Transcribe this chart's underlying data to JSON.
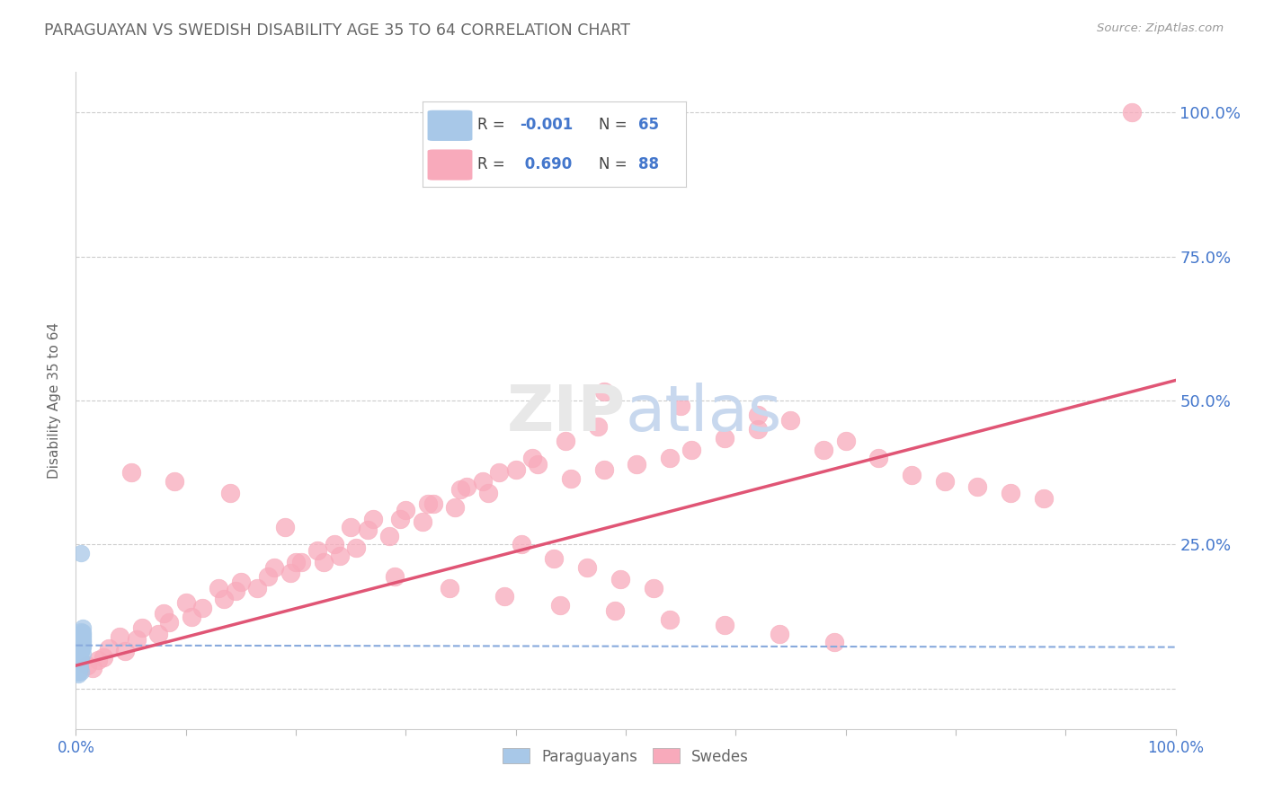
{
  "title": "PARAGUAYAN VS SWEDISH DISABILITY AGE 35 TO 64 CORRELATION CHART",
  "source": "Source: ZipAtlas.com",
  "ylabel": "Disability Age 35 to 64",
  "paraguayan_R": -0.001,
  "paraguayan_N": 65,
  "swedish_R": 0.69,
  "swedish_N": 88,
  "paraguayan_color": "#a8c8e8",
  "swedish_color": "#f8aabb",
  "trend_paraguayan_color": "#88aadd",
  "trend_swedish_color": "#e05575",
  "background_color": "#ffffff",
  "grid_color": "#cccccc",
  "title_color": "#666666",
  "axis_label_color": "#666666",
  "right_tick_label_color": "#4477cc",
  "bottom_tick_color": "#4477cc",
  "legend_R_color_paraguayan": "#4477cc",
  "legend_R_color_swedish": "#4477cc",
  "legend_N_color": "#4477cc",
  "xlim": [
    0.0,
    1.0
  ],
  "ylim": [
    -0.07,
    1.07
  ],
  "ytick_positions": [
    0.0,
    0.25,
    0.5,
    0.75,
    1.0
  ],
  "ytick_labels": [
    "",
    "25.0%",
    "50.0%",
    "75.0%",
    "100.0%"
  ],
  "xtick_positions": [
    0.0,
    0.1,
    0.2,
    0.3,
    0.4,
    0.5,
    0.6,
    0.7,
    0.8,
    0.9,
    1.0
  ],
  "xtick_labels": [
    "0.0%",
    "",
    "",
    "",
    "",
    "",
    "",
    "",
    "",
    "",
    "100.0%"
  ],
  "paraguayan_x": [
    0.003,
    0.005,
    0.004,
    0.006,
    0.002,
    0.004,
    0.003,
    0.005,
    0.004,
    0.003,
    0.006,
    0.004,
    0.005,
    0.003,
    0.004,
    0.005,
    0.003,
    0.004,
    0.005,
    0.006,
    0.002,
    0.004,
    0.005,
    0.003,
    0.006,
    0.004,
    0.003,
    0.005,
    0.004,
    0.005,
    0.002,
    0.006,
    0.004,
    0.005,
    0.006,
    0.003,
    0.004,
    0.002,
    0.005,
    0.006,
    0.003,
    0.004,
    0.005,
    0.004,
    0.005,
    0.006,
    0.003,
    0.004,
    0.002,
    0.005,
    0.004,
    0.005,
    0.006,
    0.003,
    0.005,
    0.004,
    0.005,
    0.006,
    0.004,
    0.003,
    0.005,
    0.004,
    0.006,
    0.002,
    0.005
  ],
  "paraguayan_y": [
    0.05,
    0.03,
    0.08,
    0.06,
    0.04,
    0.07,
    0.05,
    0.1,
    0.055,
    0.045,
    0.075,
    0.035,
    0.065,
    0.085,
    0.055,
    0.09,
    0.045,
    0.06,
    0.095,
    0.08,
    0.025,
    0.05,
    0.07,
    0.04,
    0.085,
    0.065,
    0.048,
    0.078,
    0.055,
    0.068,
    0.032,
    0.072,
    0.048,
    0.068,
    0.088,
    0.042,
    0.062,
    0.028,
    0.075,
    0.105,
    0.038,
    0.052,
    0.082,
    0.058,
    0.072,
    0.092,
    0.043,
    0.063,
    0.033,
    0.077,
    0.053,
    0.068,
    0.098,
    0.038,
    0.072,
    0.055,
    0.082,
    0.095,
    0.065,
    0.04,
    0.072,
    0.048,
    0.082,
    0.03,
    0.235
  ],
  "swedish_x": [
    0.01,
    0.02,
    0.03,
    0.04,
    0.06,
    0.08,
    0.1,
    0.13,
    0.15,
    0.18,
    0.2,
    0.22,
    0.25,
    0.27,
    0.3,
    0.32,
    0.35,
    0.37,
    0.4,
    0.42,
    0.45,
    0.48,
    0.51,
    0.54,
    0.56,
    0.59,
    0.62,
    0.65,
    0.68,
    0.7,
    0.73,
    0.76,
    0.79,
    0.82,
    0.85,
    0.88,
    0.025,
    0.055,
    0.085,
    0.115,
    0.145,
    0.175,
    0.205,
    0.235,
    0.265,
    0.295,
    0.325,
    0.355,
    0.385,
    0.415,
    0.445,
    0.475,
    0.015,
    0.045,
    0.075,
    0.105,
    0.135,
    0.165,
    0.195,
    0.225,
    0.255,
    0.285,
    0.315,
    0.345,
    0.375,
    0.405,
    0.435,
    0.465,
    0.495,
    0.525,
    0.05,
    0.09,
    0.14,
    0.19,
    0.24,
    0.29,
    0.34,
    0.39,
    0.44,
    0.49,
    0.54,
    0.59,
    0.64,
    0.69,
    0.96,
    0.48,
    0.55,
    0.62
  ],
  "swedish_y": [
    0.04,
    0.05,
    0.07,
    0.09,
    0.105,
    0.13,
    0.15,
    0.175,
    0.185,
    0.21,
    0.22,
    0.24,
    0.28,
    0.295,
    0.31,
    0.32,
    0.345,
    0.36,
    0.38,
    0.39,
    0.365,
    0.38,
    0.39,
    0.4,
    0.415,
    0.435,
    0.45,
    0.465,
    0.415,
    0.43,
    0.4,
    0.37,
    0.36,
    0.35,
    0.34,
    0.33,
    0.055,
    0.085,
    0.115,
    0.14,
    0.17,
    0.195,
    0.22,
    0.25,
    0.275,
    0.295,
    0.32,
    0.35,
    0.375,
    0.4,
    0.43,
    0.455,
    0.035,
    0.065,
    0.095,
    0.125,
    0.155,
    0.175,
    0.2,
    0.22,
    0.245,
    0.265,
    0.29,
    0.315,
    0.34,
    0.25,
    0.225,
    0.21,
    0.19,
    0.175,
    0.375,
    0.36,
    0.34,
    0.28,
    0.23,
    0.195,
    0.175,
    0.16,
    0.145,
    0.135,
    0.12,
    0.11,
    0.095,
    0.08,
    1.0,
    0.515,
    0.49,
    0.475
  ],
  "trend_par_x0": 0.0,
  "trend_par_y0": 0.075,
  "trend_par_x1": 1.0,
  "trend_par_y1": 0.072,
  "trend_swe_x0": 0.0,
  "trend_swe_y0": 0.04,
  "trend_swe_x1": 1.0,
  "trend_swe_y1": 0.535,
  "figsize": [
    14.06,
    8.92
  ],
  "dpi": 100
}
